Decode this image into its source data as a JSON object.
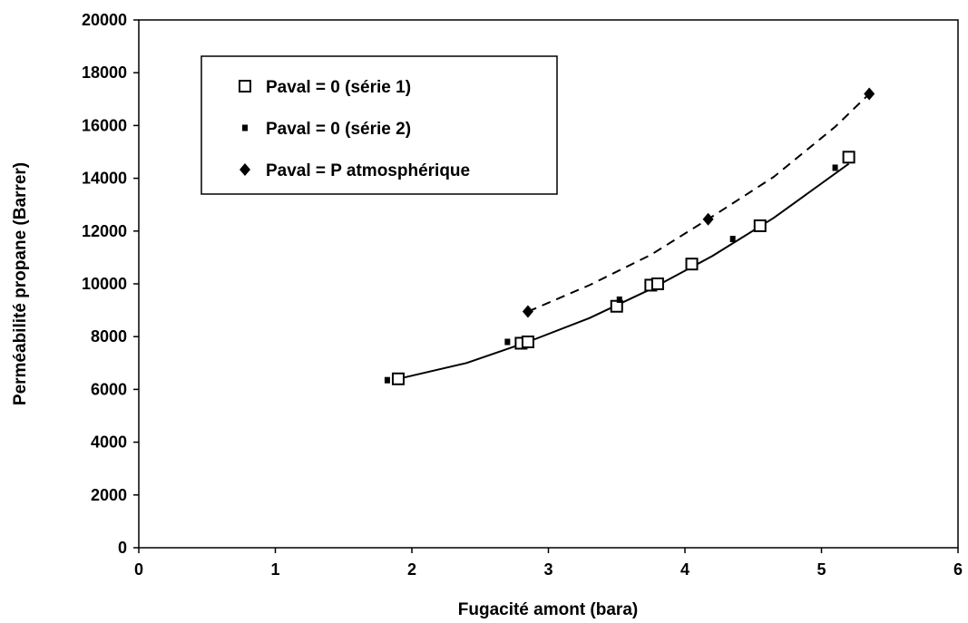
{
  "chart_data": {
    "type": "scatter",
    "title": "",
    "xlabel": "Fugacité amont (bara)",
    "ylabel": "Perméabilité propane (Barrer)",
    "xlim": [
      0,
      6
    ],
    "ylim": [
      0,
      20000
    ],
    "x_ticks": [
      "0",
      "1",
      "2",
      "3",
      "4",
      "5",
      "6"
    ],
    "y_ticks": [
      "0",
      "2000",
      "4000",
      "6000",
      "8000",
      "10000",
      "12000",
      "14000",
      "16000",
      "18000",
      "20000"
    ],
    "grid": false,
    "legend_position": "top-left",
    "series": [
      {
        "name": "Paval = 0 (série 1)",
        "marker": "open-square",
        "color": "#000000",
        "points": [
          [
            1.9,
            6400
          ],
          [
            2.8,
            7750
          ],
          [
            2.85,
            7800
          ],
          [
            3.5,
            9150
          ],
          [
            3.75,
            9950
          ],
          [
            3.8,
            10000
          ],
          [
            4.05,
            10750
          ],
          [
            4.55,
            12200
          ],
          [
            5.2,
            14800
          ]
        ]
      },
      {
        "name": "Paval = 0 (série 2)",
        "marker": "small-square",
        "color": "#000000",
        "points": [
          [
            1.82,
            6350
          ],
          [
            2.7,
            7800
          ],
          [
            3.52,
            9400
          ],
          [
            4.35,
            11700
          ],
          [
            5.1,
            14400
          ]
        ]
      },
      {
        "name": "Paval = P atmosphérique",
        "marker": "filled-diamond",
        "color": "#000000",
        "points": [
          [
            2.85,
            8950
          ],
          [
            4.17,
            12450
          ],
          [
            5.35,
            17200
          ]
        ]
      }
    ],
    "trendlines": [
      {
        "style": "solid",
        "points": [
          [
            1.9,
            6400
          ],
          [
            2.4,
            7000
          ],
          [
            2.85,
            7800
          ],
          [
            3.3,
            8700
          ],
          [
            3.75,
            9800
          ],
          [
            4.2,
            11050
          ],
          [
            4.65,
            12500
          ],
          [
            5.2,
            14550
          ]
        ]
      },
      {
        "style": "dashed",
        "points": [
          [
            2.85,
            8950
          ],
          [
            3.3,
            9950
          ],
          [
            3.75,
            11100
          ],
          [
            4.2,
            12550
          ],
          [
            4.65,
            14050
          ],
          [
            5.1,
            15950
          ],
          [
            5.35,
            17200
          ]
        ]
      }
    ]
  }
}
